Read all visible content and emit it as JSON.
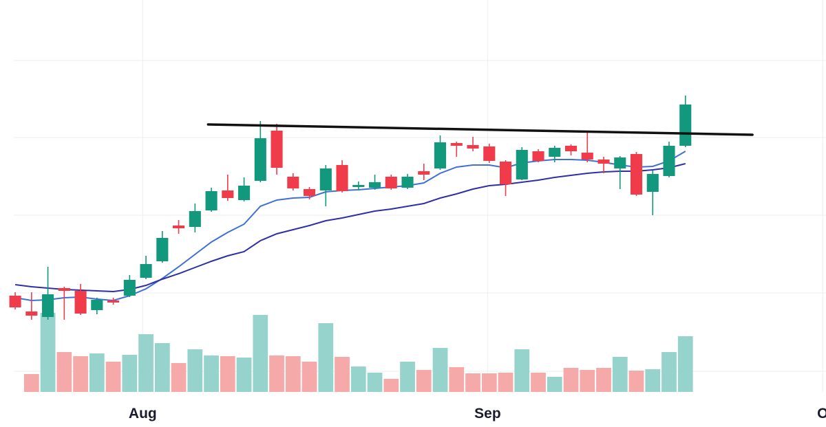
{
  "chart_data": {
    "type": "candlestick",
    "x": [
      0,
      1,
      2,
      3,
      4,
      5,
      6,
      7,
      8,
      9,
      10,
      11,
      12,
      13,
      14,
      15,
      16,
      17,
      18,
      19,
      20,
      21,
      22,
      23,
      24,
      25,
      26,
      27,
      28,
      29,
      30,
      31,
      32,
      33,
      34,
      35,
      36,
      37,
      38,
      39,
      40,
      41
    ],
    "open": [
      140,
      117,
      109,
      151,
      147,
      119,
      133,
      140,
      166,
      190,
      242,
      240,
      264,
      293,
      279,
      307,
      380,
      313,
      295,
      293,
      330,
      298,
      297,
      313,
      297,
      321,
      325,
      362,
      359,
      357,
      335,
      309,
      350,
      342,
      358,
      348,
      338,
      325,
      346,
      291,
      314,
      358
    ],
    "high": [
      145,
      145,
      182,
      153,
      157,
      137,
      137,
      170,
      198,
      234,
      250,
      274,
      297,
      316,
      312,
      394,
      390,
      318,
      298,
      330,
      337,
      306,
      316,
      316,
      317,
      332,
      373,
      364,
      371,
      361,
      337,
      356,
      353,
      358,
      360,
      377,
      342,
      343,
      349,
      322,
      364,
      431
    ],
    "low": [
      120,
      105,
      105,
      105,
      112,
      113,
      127,
      138,
      164,
      188,
      230,
      232,
      262,
      278,
      277,
      305,
      316,
      293,
      280,
      270,
      290,
      293,
      294,
      294,
      295,
      308,
      323,
      342,
      350,
      333,
      285,
      308,
      334,
      334,
      344,
      334,
      318,
      295,
      285,
      257,
      312,
      356
    ],
    "close": [
      123,
      111,
      142,
      147,
      114,
      134,
      130,
      163,
      186,
      224,
      238,
      263,
      292,
      282,
      300,
      369,
      326,
      296,
      285,
      325,
      292,
      301,
      305,
      296,
      313,
      316,
      363,
      358,
      354,
      336,
      302,
      352,
      336,
      355,
      350,
      338,
      332,
      341,
      287,
      317,
      358,
      418
    ],
    "volume": [
      null,
      26,
      115,
      58,
      52,
      56,
      44,
      54,
      84,
      71,
      42,
      62,
      53,
      52,
      50,
      112,
      53,
      52,
      44,
      100,
      51,
      37,
      28,
      19,
      44,
      32,
      64,
      36,
      27,
      27,
      28,
      62,
      28,
      22,
      35,
      32,
      35,
      51,
      31,
      33,
      58,
      81
    ],
    "up_color": "#12987c",
    "down_color": "#ef3b4a",
    "volume_up_color": "#96d3cc",
    "volume_down_color": "#f5a9a9",
    "series": [
      {
        "color": "#3d6fd6",
        "values": [
          137,
          133,
          134,
          137,
          138,
          135,
          133,
          140,
          150,
          165,
          182,
          200,
          218,
          232,
          244,
          270,
          279,
          282,
          283,
          291,
          293,
          294,
          296,
          298,
          300,
          304,
          318,
          327,
          330,
          330,
          326,
          333,
          336,
          338,
          338,
          337,
          334,
          330,
          327,
          328,
          336,
          350
        ]
      },
      {
        "color": "#2e2ea6",
        "values": [
          156,
          153,
          151,
          149,
          148,
          147,
          146,
          149,
          155,
          164,
          172,
          181,
          190,
          198,
          204,
          220,
          230,
          236,
          242,
          249,
          253,
          258,
          263,
          266,
          270,
          274,
          282,
          288,
          295,
          300,
          302,
          305,
          308,
          312,
          315,
          318,
          320,
          321,
          321,
          323,
          326,
          332
        ]
      }
    ],
    "trendline": {
      "x": [
        11.8,
        45.1
      ],
      "y": [
        389,
        374
      ],
      "color": "#111111"
    },
    "xlim": [
      -0.93,
      49.6
    ],
    "ylim": [
      0,
      570
    ],
    "y2lim": [
      0,
      570
    ],
    "xticks": [
      {
        "value": 7.8,
        "label": "Aug"
      },
      {
        "value": 28.9,
        "label": "Sep"
      },
      {
        "value": 49.4,
        "label": "O"
      }
    ],
    "gridlines": [
      30,
      144,
      257,
      370,
      482
    ],
    "grid": true
  }
}
